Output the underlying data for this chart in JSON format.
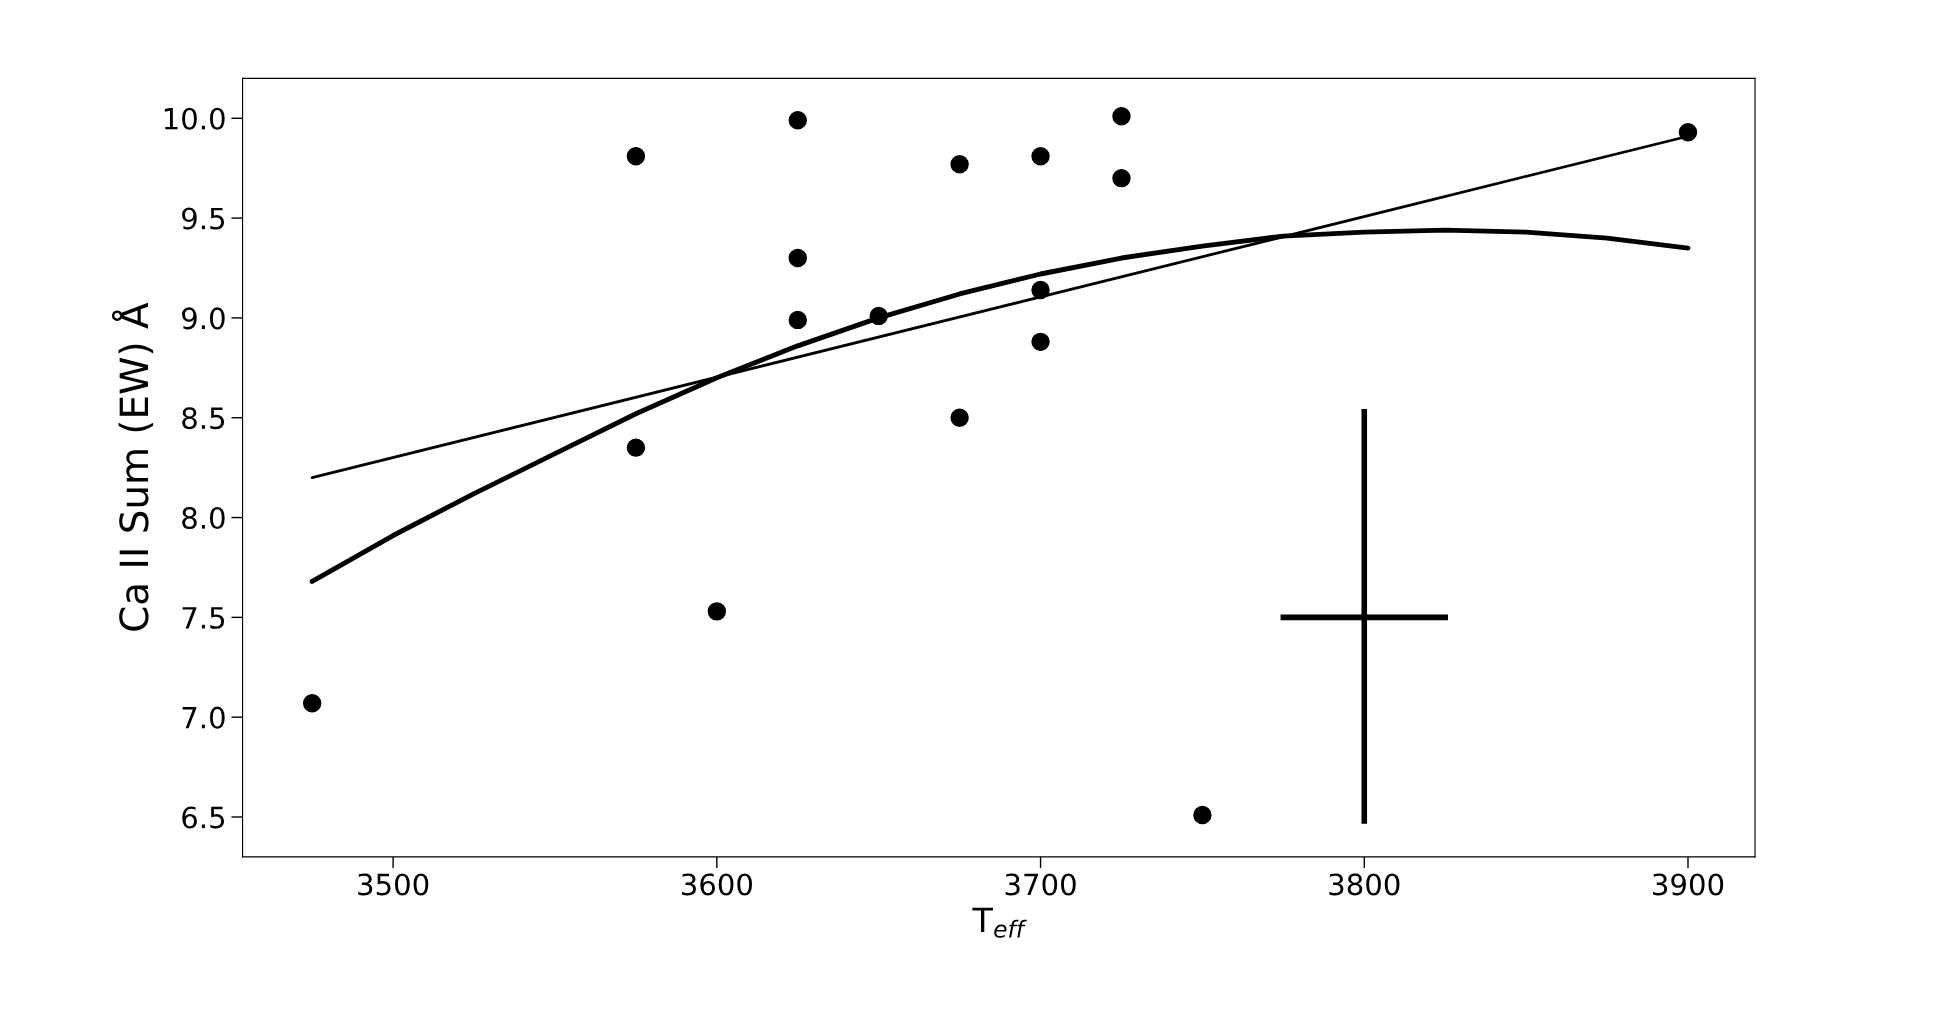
{
  "chart_data": {
    "type": "scatter",
    "xlabel": "T$_{eff}$",
    "ylabel": "Ca II Sum (EW) Å",
    "xlim": [
      3453.5,
      3920.7
    ],
    "ylim": [
      6.3,
      10.2
    ],
    "xticks": [
      3500,
      3600,
      3700,
      3800,
      3900
    ],
    "yticks": [
      {
        "value": 6.5,
        "label": "6.5"
      },
      {
        "value": 7.0,
        "label": "7.0"
      },
      {
        "value": 7.5,
        "label": "7.5"
      },
      {
        "value": 8.0,
        "label": "8.0"
      },
      {
        "value": 8.5,
        "label": "8.5"
      },
      {
        "value": 9.0,
        "label": "9.0"
      },
      {
        "value": 9.5,
        "label": "9.5"
      },
      {
        "value": 10.0,
        "label": "10.0"
      }
    ],
    "grid": false,
    "legend": false,
    "series": [
      {
        "color": "#000000",
        "marker": "circle",
        "x": [
          3475,
          3575,
          3575,
          3600,
          3625,
          3625,
          3625,
          3650,
          3675,
          3675,
          3700,
          3700,
          3700,
          3725,
          3725,
          3750,
          3900
        ],
        "values": [
          7.07,
          9.81,
          8.35,
          7.53,
          9.99,
          9.3,
          8.99,
          9.01,
          9.77,
          8.5,
          9.81,
          9.14,
          8.88,
          10.01,
          9.7,
          6.51,
          9.93
        ]
      },
      {
        "type": "line",
        "color": "#000000",
        "marker": "none",
        "line_style": "solid",
        "x": [
          3475,
          3900
        ],
        "values": [
          8.2,
          9.91
        ]
      },
      {
        "type": "line",
        "color": "#000000",
        "marker": "none",
        "line_style": "solid",
        "x": [
          3475,
          3500,
          3525,
          3550,
          3575,
          3600,
          3625,
          3650,
          3675,
          3700,
          3725,
          3750,
          3775,
          3800,
          3825,
          3850,
          3875,
          3900
        ],
        "values": [
          7.68,
          7.91,
          8.12,
          8.32,
          8.52,
          8.7,
          8.86,
          9.0,
          9.12,
          9.22,
          9.3,
          9.36,
          9.41,
          9.43,
          9.44,
          9.43,
          9.4,
          9.35
        ]
      },
      {
        "color": "#000000",
        "marker": "square",
        "x": [
          3800
        ],
        "values": [
          7.5
        ],
        "errors": [
          [
            6.48,
            8.53
          ]
        ],
        "xerrors": [
          [
            3775,
            3825
          ]
        ]
      }
    ]
  }
}
